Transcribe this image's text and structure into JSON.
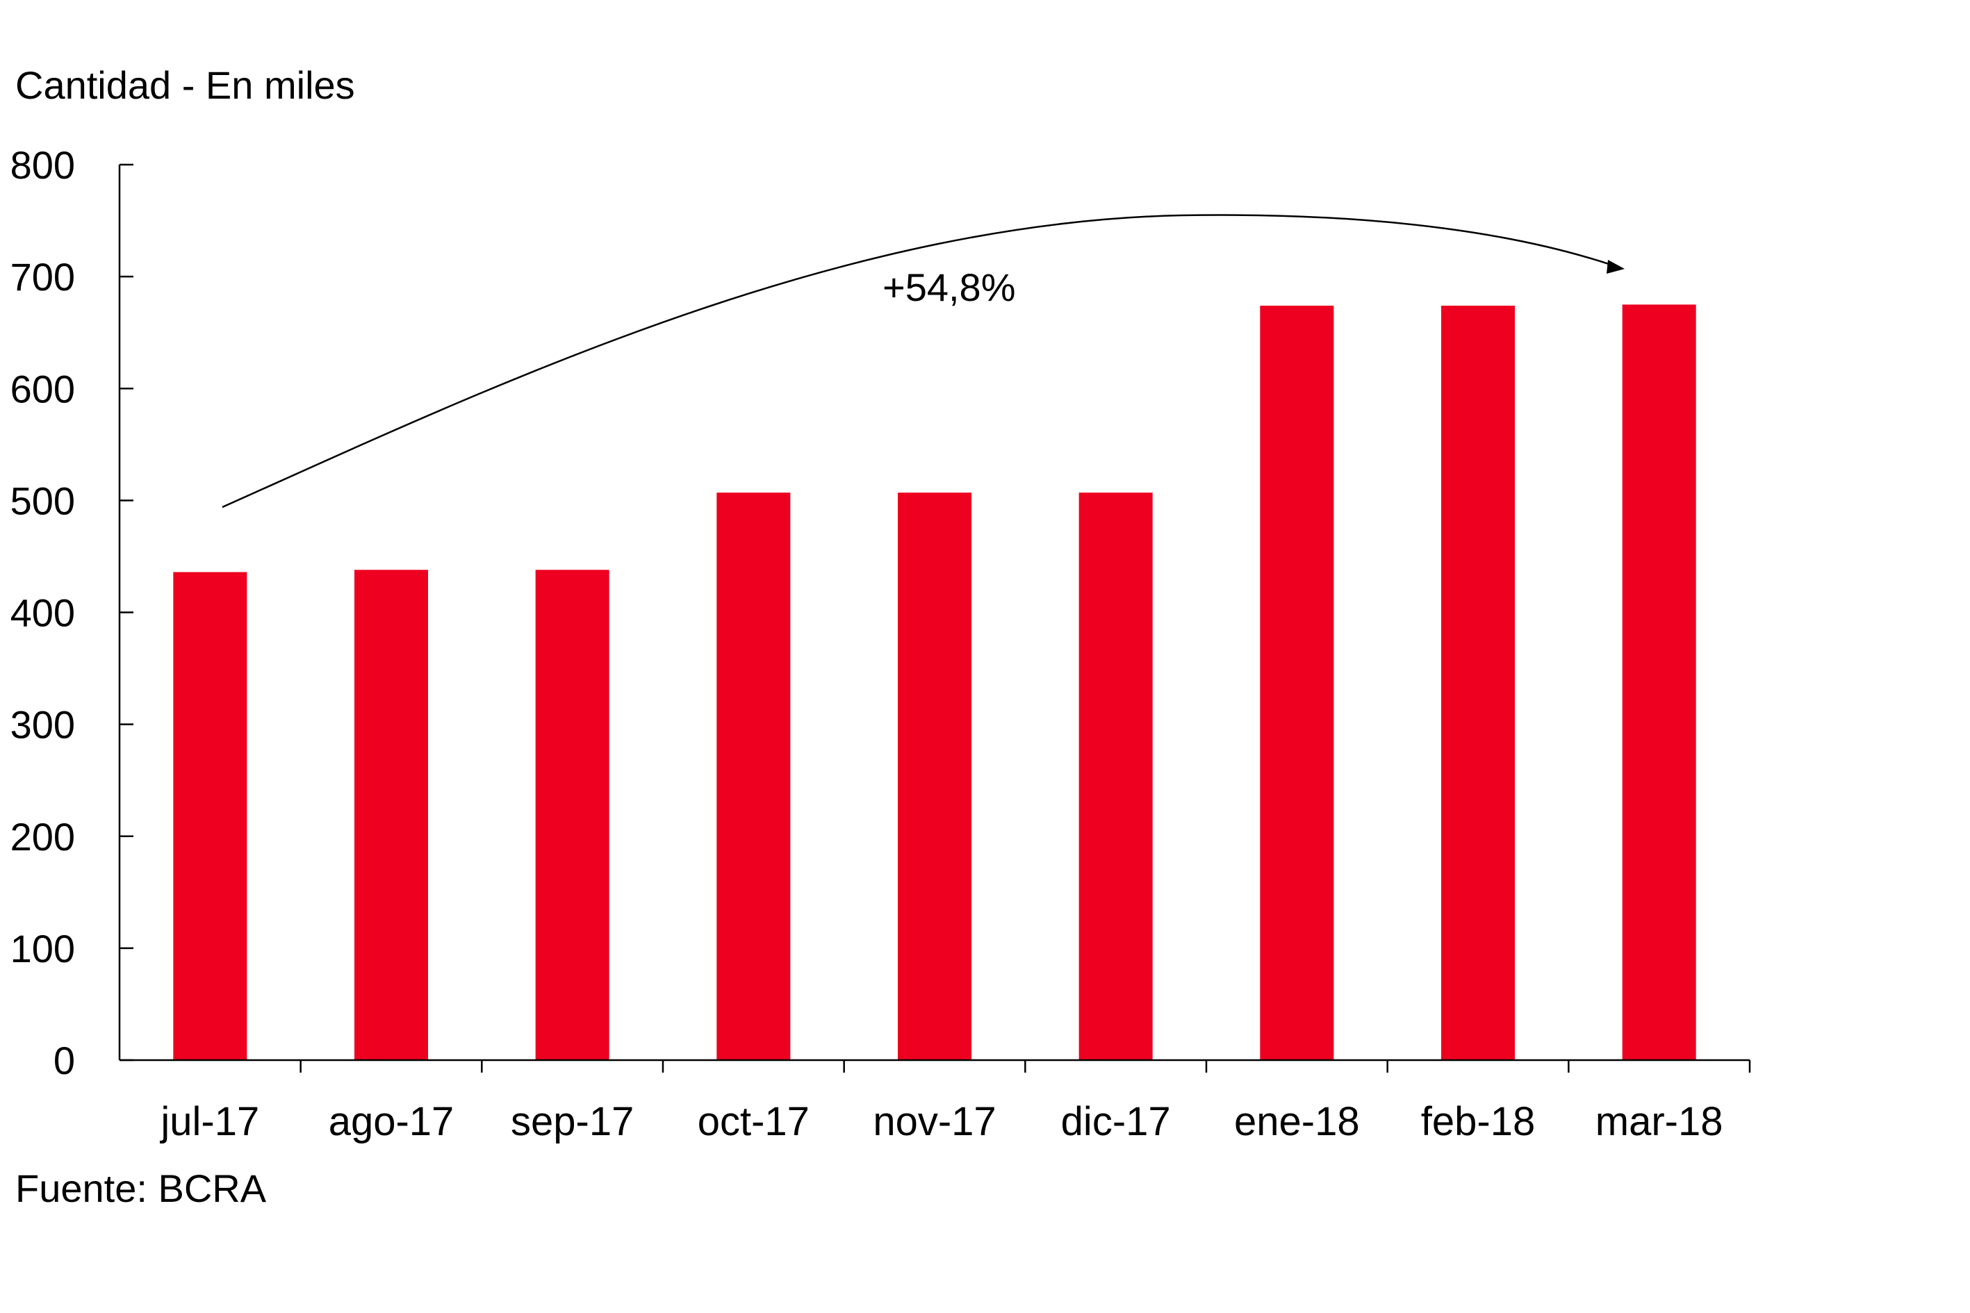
{
  "chart_data": {
    "type": "bar",
    "ylabel": "Cantidad - En miles",
    "categories": [
      "jul-17",
      "ago-17",
      "sep-17",
      "oct-17",
      "nov-17",
      "dic-17",
      "ene-18",
      "feb-18",
      "mar-18"
    ],
    "series": [
      {
        "values": [
          436,
          438,
          438,
          507,
          507,
          507,
          674,
          674,
          675
        ]
      }
    ],
    "ylim": [
      0,
      800
    ],
    "yticks": [
      0,
      100,
      200,
      300,
      400,
      500,
      600,
      700,
      800
    ],
    "grid": false,
    "bar_color": "#EE0020",
    "annotation": {
      "text": "+54,8%"
    },
    "source": "Fuente: BCRA"
  }
}
